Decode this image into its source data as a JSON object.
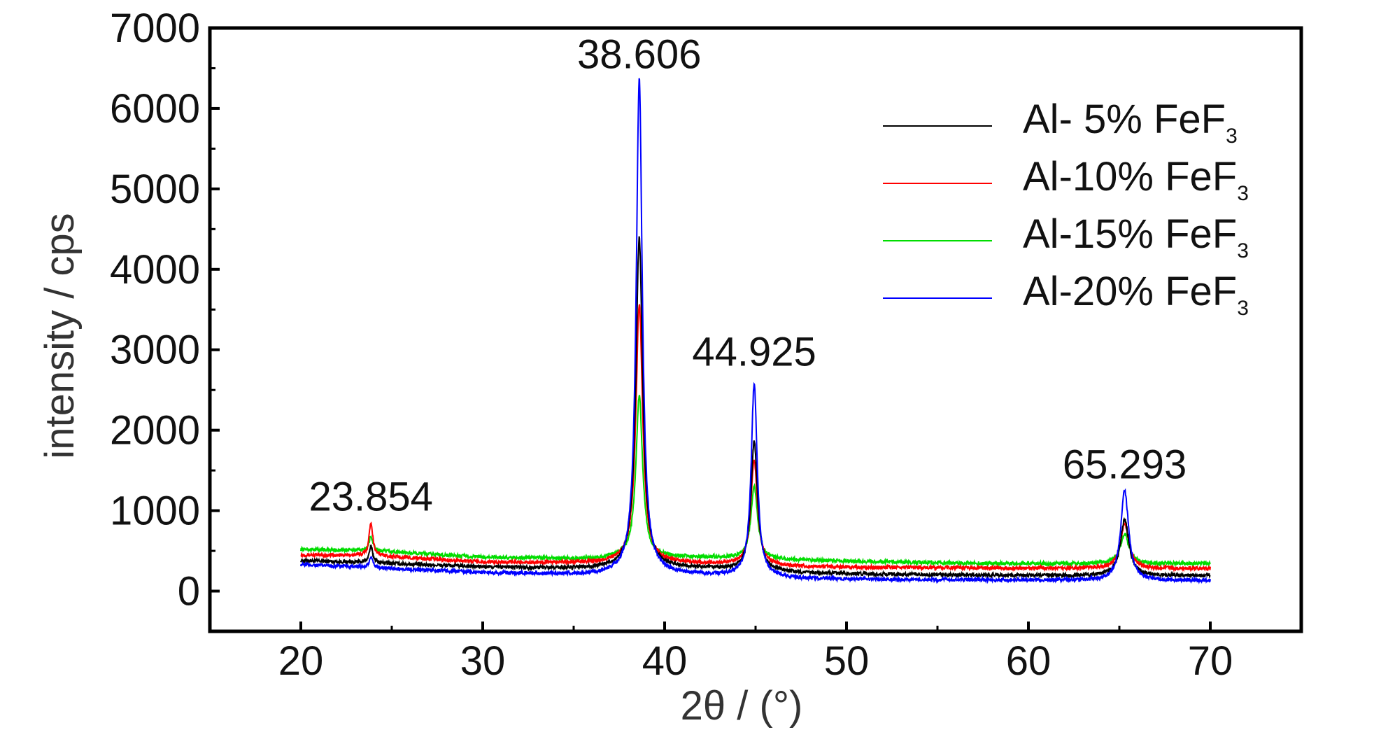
{
  "chart_data": {
    "type": "line",
    "xlabel": "2θ / (°)",
    "ylabel": "intensity / cps",
    "xlim": [
      15,
      75
    ],
    "ylim": [
      -500,
      7000
    ],
    "xticks": [
      20,
      30,
      40,
      50,
      60,
      70
    ],
    "xtick_labels": [
      "20",
      "30",
      "40",
      "50",
      "60",
      "70"
    ],
    "yticks": [
      0,
      1000,
      2000,
      3000,
      4000,
      5000,
      6000,
      7000
    ],
    "ytick_labels": [
      "0",
      "1000",
      "2000",
      "3000",
      "4000",
      "5000",
      "6000",
      "7000"
    ],
    "x_range": [
      20,
      70
    ],
    "grid": false,
    "legend_position": "top-right",
    "peak_annotations": [
      {
        "text": "23.854",
        "x": 23.854,
        "y": 1000
      },
      {
        "text": "38.606",
        "x": 38.606,
        "y": 6500
      },
      {
        "text": "44.925",
        "x": 44.925,
        "y": 2800
      },
      {
        "text": "65.293",
        "x": 65.293,
        "y": 1400
      }
    ],
    "series": [
      {
        "name": "Al- 5% FeF3",
        "legend_prefix": "Al- 5% FeF",
        "legend_sub": "3",
        "color": "#000000",
        "baseline": [
          [
            20,
            380
          ],
          [
            24,
            350
          ],
          [
            30,
            300
          ],
          [
            36,
            280
          ],
          [
            38,
            300
          ],
          [
            42,
            280
          ],
          [
            48,
            220
          ],
          [
            55,
            200
          ],
          [
            64,
            190
          ],
          [
            70,
            190
          ]
        ],
        "peaks": [
          [
            23.854,
            200,
            0.12
          ],
          [
            38.606,
            4100,
            0.22
          ],
          [
            44.925,
            1600,
            0.22
          ],
          [
            65.293,
            700,
            0.28
          ]
        ]
      },
      {
        "name": "Al-10% FeF3",
        "legend_prefix": "Al-10% FeF",
        "legend_sub": "3",
        "color": "#ff0000",
        "baseline": [
          [
            20,
            450
          ],
          [
            24,
            440
          ],
          [
            30,
            360
          ],
          [
            36,
            350
          ],
          [
            38,
            370
          ],
          [
            42,
            340
          ],
          [
            48,
            300
          ],
          [
            55,
            290
          ],
          [
            64,
            280
          ],
          [
            70,
            280
          ]
        ],
        "peaks": [
          [
            23.854,
            420,
            0.12
          ],
          [
            38.606,
            3200,
            0.22
          ],
          [
            44.925,
            1300,
            0.22
          ],
          [
            65.293,
            560,
            0.28
          ]
        ]
      },
      {
        "name": "Al-15% FeF3",
        "legend_prefix": "Al-15% FeF",
        "legend_sub": "3",
        "color": "#00dd00",
        "baseline": [
          [
            20,
            520
          ],
          [
            24,
            500
          ],
          [
            30,
            420
          ],
          [
            36,
            400
          ],
          [
            38,
            430
          ],
          [
            42,
            420
          ],
          [
            48,
            380
          ],
          [
            55,
            350
          ],
          [
            64,
            340
          ],
          [
            70,
            340
          ]
        ],
        "peaks": [
          [
            23.854,
            180,
            0.12
          ],
          [
            38.606,
            2000,
            0.22
          ],
          [
            44.925,
            900,
            0.22
          ],
          [
            65.293,
            370,
            0.28
          ]
        ]
      },
      {
        "name": "Al-20% FeF3",
        "legend_prefix": "Al-20% FeF",
        "legend_sub": "3",
        "color": "#0000ff",
        "baseline": [
          [
            20,
            330
          ],
          [
            24,
            290
          ],
          [
            30,
            230
          ],
          [
            36,
            200
          ],
          [
            38,
            220
          ],
          [
            42,
            200
          ],
          [
            48,
            150
          ],
          [
            55,
            140
          ],
          [
            64,
            130
          ],
          [
            70,
            130
          ]
        ],
        "peaks": [
          [
            23.854,
            120,
            0.12
          ],
          [
            38.606,
            6150,
            0.2
          ],
          [
            44.925,
            2400,
            0.2
          ],
          [
            65.293,
            1120,
            0.26
          ]
        ]
      }
    ]
  }
}
